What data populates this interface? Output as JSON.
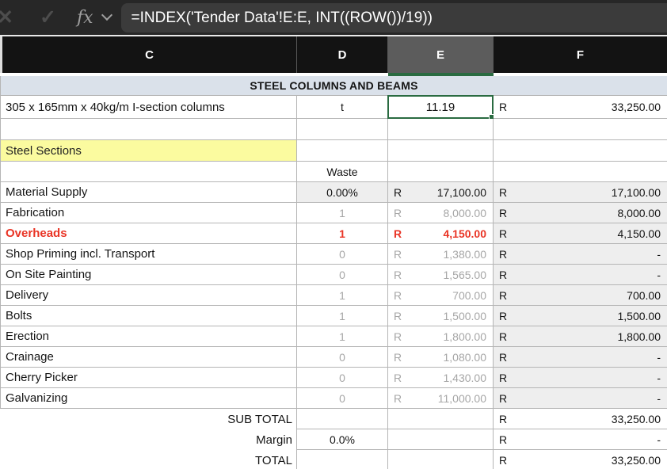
{
  "formula_bar": {
    "formula": "=INDEX('Tender Data'!E:E, INT((ROW())/19))",
    "icons": {
      "cancel": "✕",
      "confirm": "✓",
      "function": "fx",
      "chevron": "chevron-down"
    }
  },
  "columns": [
    {
      "label": "C",
      "selected": false
    },
    {
      "label": "D",
      "selected": false
    },
    {
      "label": "E",
      "selected": true
    },
    {
      "label": "F",
      "selected": false
    }
  ],
  "colors": {
    "accent": "#2a6b41",
    "alert": "#e93425",
    "yellow": "#fbfb9f",
    "titlebg": "#dae1ea",
    "shade": "#eeeeee",
    "grid": "#b5b5b5",
    "muted": "#a6a6a6"
  },
  "selection": {
    "cell_column": "E",
    "cell_value": "11.19"
  },
  "sheet": {
    "rows": [
      {
        "type": "title",
        "c": "STEEL COLUMNS AND BEAMS"
      },
      {
        "type": "item",
        "c": "305 x 165mm x 40kg/m I-section columns",
        "d": "t",
        "e": "11.19",
        "f_cur": "R",
        "f": "33,250.00",
        "selected": true
      },
      {
        "type": "empty"
      },
      {
        "type": "section",
        "c": "Steel Sections"
      },
      {
        "type": "waste",
        "d": "Waste"
      },
      {
        "type": "data",
        "c": "Material Supply",
        "d": "0.00%",
        "e_cur": "R",
        "e": "17,100.00",
        "f_cur": "R",
        "f": "17,100.00",
        "tone": "normal",
        "shaded": true
      },
      {
        "type": "data",
        "c": "Fabrication",
        "d": "1",
        "e_cur": "R",
        "e": "8,000.00",
        "f_cur": "R",
        "f": "8,000.00",
        "tone": "muted"
      },
      {
        "type": "data",
        "c": "Overheads",
        "d": "1",
        "e_cur": "R",
        "e": "4,150.00",
        "f_cur": "R",
        "f": "4,150.00",
        "tone": "alert"
      },
      {
        "type": "data",
        "c": "Shop Priming incl. Transport",
        "d": "0",
        "e_cur": "R",
        "e": "1,380.00",
        "f_cur": "R",
        "f": "-",
        "tone": "muted"
      },
      {
        "type": "data",
        "c": "On Site Painting",
        "d": "0",
        "e_cur": "R",
        "e": "1,565.00",
        "f_cur": "R",
        "f": "-",
        "tone": "muted"
      },
      {
        "type": "data",
        "c": "Delivery",
        "d": "1",
        "e_cur": "R",
        "e": "700.00",
        "f_cur": "R",
        "f": "700.00",
        "tone": "muted"
      },
      {
        "type": "data",
        "c": "Bolts",
        "d": "1",
        "e_cur": "R",
        "e": "1,500.00",
        "f_cur": "R",
        "f": "1,500.00",
        "tone": "muted"
      },
      {
        "type": "data",
        "c": "Erection",
        "d": "1",
        "e_cur": "R",
        "e": "1,800.00",
        "f_cur": "R",
        "f": "1,800.00",
        "tone": "muted"
      },
      {
        "type": "data",
        "c": "Crainage",
        "d": "0",
        "e_cur": "R",
        "e": "1,080.00",
        "f_cur": "R",
        "f": "-",
        "tone": "muted"
      },
      {
        "type": "data",
        "c": "Cherry Picker",
        "d": "0",
        "e_cur": "R",
        "e": "1,430.00",
        "f_cur": "R",
        "f": "-",
        "tone": "muted"
      },
      {
        "type": "data",
        "c": "Galvanizing",
        "d": "0",
        "e_cur": "R",
        "e": "11,000.00",
        "f_cur": "R",
        "f": "-",
        "tone": "muted"
      },
      {
        "type": "total",
        "c": "SUB TOTAL",
        "f_cur": "R",
        "f": "33,250.00"
      },
      {
        "type": "total",
        "c": "Margin",
        "d": "0.0%",
        "f_cur": "R",
        "f": "-"
      },
      {
        "type": "total",
        "c": "TOTAL",
        "f_cur": "R",
        "f": "33,250.00"
      }
    ]
  }
}
